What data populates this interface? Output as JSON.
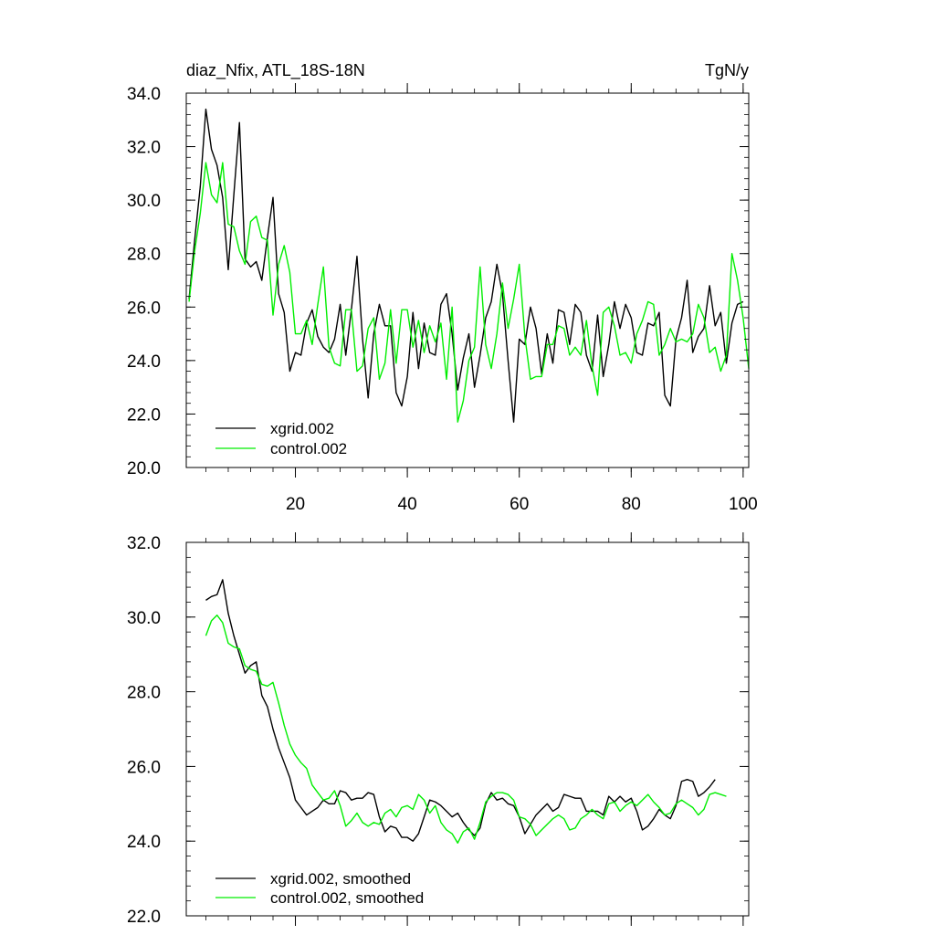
{
  "chart_data": [
    {
      "type": "line",
      "title": "diaz_Nfix, ATL_18S-18N",
      "units": "TgN/y",
      "xlabel": "",
      "ylabel": "",
      "xlim": [
        0.5,
        101
      ],
      "ylim": [
        20,
        34
      ],
      "x_ticks": [
        20,
        40,
        60,
        80,
        100
      ],
      "x_tick_labels": [
        "20",
        "40",
        "60",
        "80",
        "100"
      ],
      "y_ticks": [
        20,
        22,
        24,
        26,
        28,
        30,
        32,
        34
      ],
      "y_tick_labels": [
        "20.0",
        "22.0",
        "24.0",
        "26.0",
        "28.0",
        "30.0",
        "32.0",
        "34.0"
      ],
      "grid": false,
      "legend_position": "bottom-left",
      "series": [
        {
          "name": "xgrid.002",
          "color": "#000000",
          "x_start": 1,
          "values": [
            26.3,
            28.5,
            30.5,
            33.4,
            31.9,
            31.3,
            30.1,
            27.4,
            30.2,
            32.9,
            27.8,
            27.5,
            27.7,
            27.0,
            28.6,
            30.1,
            26.5,
            25.8,
            23.6,
            24.3,
            24.2,
            25.4,
            25.9,
            24.9,
            24.5,
            24.3,
            24.8,
            26.1,
            24.2,
            25.9,
            27.9,
            24.8,
            22.6,
            25.0,
            26.1,
            25.3,
            25.3,
            22.8,
            22.3,
            23.4,
            25.8,
            23.7,
            25.4,
            24.3,
            24.2,
            26.1,
            26.5,
            25.0,
            22.9,
            24.1,
            25.0,
            23.0,
            24.2,
            25.6,
            26.2,
            27.6,
            26.5,
            24.0,
            21.7,
            24.8,
            24.6,
            26.0,
            25.2,
            23.5,
            25.0,
            23.9,
            25.9,
            25.8,
            24.6,
            26.1,
            25.8,
            24.2,
            23.6,
            25.7,
            23.4,
            24.6,
            26.2,
            25.2,
            26.1,
            25.6,
            24.3,
            24.2,
            25.4,
            25.3,
            25.8,
            22.7,
            22.3,
            24.8,
            25.6,
            27.0,
            24.3,
            24.9,
            25.2,
            26.8,
            25.3,
            25.8,
            23.9,
            25.4,
            26.1,
            26.2
          ]
        },
        {
          "name": "control.002",
          "color": "#00ee00",
          "x_start": 1,
          "values": [
            26.2,
            28.1,
            29.5,
            31.4,
            30.2,
            29.9,
            31.4,
            29.1,
            29.0,
            28.1,
            27.6,
            29.2,
            29.4,
            28.6,
            28.5,
            25.7,
            27.6,
            28.3,
            27.3,
            25.0,
            25.0,
            25.5,
            24.6,
            26.1,
            27.5,
            24.5,
            23.9,
            23.8,
            25.9,
            25.9,
            23.6,
            23.8,
            25.2,
            25.6,
            23.3,
            23.9,
            25.9,
            23.9,
            25.9,
            25.9,
            24.5,
            25.5,
            24.3,
            25.3,
            24.7,
            25.4,
            23.3,
            26.0,
            21.7,
            22.5,
            24.0,
            24.5,
            27.5,
            24.6,
            23.7,
            25.0,
            26.9,
            25.2,
            26.3,
            27.6,
            24.9,
            23.3,
            23.4,
            23.4,
            24.6,
            24.6,
            25.3,
            25.2,
            24.2,
            24.5,
            24.2,
            25.5,
            23.8,
            22.7,
            25.8,
            26.0,
            25.3,
            24.2,
            24.3,
            23.9,
            25.0,
            25.5,
            26.2,
            26.1,
            24.2,
            24.6,
            25.2,
            24.7,
            24.8,
            24.7,
            25.0,
            26.1,
            25.6,
            24.3,
            24.5,
            23.6,
            24.2,
            28.0,
            27.0,
            25.6,
            23.7
          ]
        }
      ]
    },
    {
      "type": "line",
      "title": "",
      "xlabel": "",
      "ylabel": "",
      "xlim": [
        0.5,
        101
      ],
      "ylim": [
        22,
        32
      ],
      "x_ticks": [
        20,
        40,
        60,
        80,
        100
      ],
      "y_ticks": [
        22,
        24,
        26,
        28,
        30,
        32
      ],
      "y_tick_labels": [
        "22.0",
        "24.0",
        "26.0",
        "28.0",
        "30.0",
        "32.0"
      ],
      "grid": false,
      "legend_position": "bottom-left",
      "series": [
        {
          "name": "xgrid.002, smoothed",
          "color": "#000000",
          "x_start": 4,
          "values": [
            30.45,
            30.55,
            30.6,
            31.0,
            30.1,
            29.5,
            29.0,
            28.5,
            28.7,
            28.8,
            27.9,
            27.6,
            27.0,
            26.5,
            26.1,
            25.7,
            25.1,
            24.9,
            24.7,
            24.8,
            24.9,
            25.1,
            25.0,
            25.0,
            25.35,
            25.3,
            25.1,
            25.15,
            25.15,
            25.3,
            25.25,
            24.65,
            24.25,
            24.4,
            24.35,
            24.1,
            24.1,
            24.0,
            24.2,
            24.65,
            25.1,
            25.05,
            24.95,
            24.8,
            24.65,
            24.75,
            24.5,
            24.3,
            24.15,
            24.35,
            25.0,
            25.3,
            25.1,
            25.15,
            25.0,
            24.95,
            24.65,
            24.2,
            24.45,
            24.7,
            24.85,
            25.0,
            24.8,
            24.9,
            25.25,
            25.2,
            25.15,
            25.15,
            24.8,
            24.8,
            24.8,
            24.7,
            25.2,
            25.05,
            25.2,
            25.05,
            25.15,
            24.8,
            24.3,
            24.4,
            24.6,
            24.85,
            24.7,
            24.6,
            24.95,
            25.6,
            25.65,
            25.6,
            25.2,
            25.3,
            25.45,
            25.65
          ]
        },
        {
          "name": "control.002, smoothed",
          "color": "#00ee00",
          "x_start": 4,
          "values": [
            29.5,
            29.9,
            30.05,
            29.85,
            29.3,
            29.2,
            29.15,
            28.7,
            28.6,
            28.55,
            28.2,
            28.15,
            28.25,
            27.7,
            27.1,
            26.6,
            26.3,
            26.1,
            25.95,
            25.5,
            25.3,
            25.1,
            25.15,
            25.35,
            24.95,
            24.4,
            24.55,
            24.75,
            24.5,
            24.4,
            24.5,
            24.45,
            24.75,
            24.85,
            24.65,
            24.9,
            24.95,
            24.85,
            25.25,
            25.1,
            24.75,
            24.95,
            24.5,
            24.3,
            24.2,
            23.95,
            24.25,
            24.35,
            24.05,
            24.5,
            25.05,
            25.2,
            25.3,
            25.3,
            25.25,
            25.1,
            24.65,
            24.6,
            24.45,
            24.15,
            24.3,
            24.45,
            24.6,
            24.7,
            24.6,
            24.3,
            24.35,
            24.6,
            24.7,
            24.85,
            24.7,
            24.6,
            25.0,
            25.05,
            24.8,
            24.95,
            25.05,
            24.95,
            25.1,
            25.25,
            25.05,
            24.9,
            24.7,
            24.75,
            25.0,
            25.1,
            25.0,
            24.9,
            24.7,
            24.85,
            25.25,
            25.3,
            25.25,
            25.2
          ]
        }
      ]
    }
  ]
}
